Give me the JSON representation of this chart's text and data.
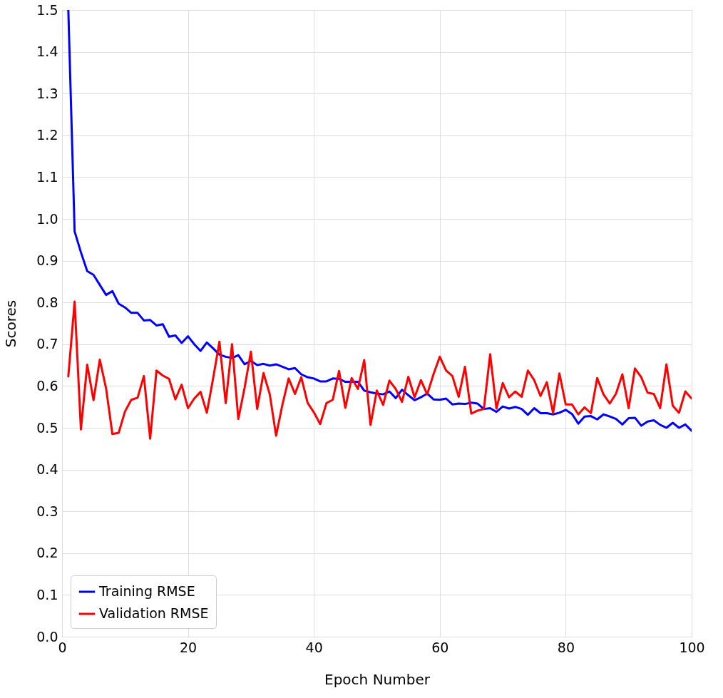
{
  "chart_data": {
    "type": "line",
    "xlabel": "Epoch Number",
    "ylabel": "Scores",
    "x": [
      1,
      2,
      3,
      4,
      5,
      6,
      7,
      8,
      9,
      10,
      11,
      12,
      13,
      14,
      15,
      16,
      17,
      18,
      19,
      20,
      21,
      22,
      23,
      24,
      25,
      26,
      27,
      28,
      29,
      30,
      31,
      32,
      33,
      34,
      35,
      36,
      37,
      38,
      39,
      40,
      41,
      42,
      43,
      44,
      45,
      46,
      47,
      48,
      49,
      50,
      51,
      52,
      53,
      54,
      55,
      56,
      57,
      58,
      59,
      60,
      61,
      62,
      63,
      64,
      65,
      66,
      67,
      68,
      69,
      70,
      71,
      72,
      73,
      74,
      75,
      76,
      77,
      78,
      79,
      80,
      81,
      82,
      83,
      84,
      85,
      86,
      87,
      88,
      89,
      90,
      91,
      92,
      93,
      94,
      95,
      96,
      97,
      98,
      99,
      100
    ],
    "series": [
      {
        "name": "Training RMSE",
        "color": "#0000ff",
        "values": [
          1.5,
          0.97,
          0.92,
          0.875,
          0.866,
          0.842,
          0.818,
          0.827,
          0.797,
          0.788,
          0.775,
          0.775,
          0.757,
          0.758,
          0.745,
          0.748,
          0.718,
          0.721,
          0.703,
          0.719,
          0.7,
          0.684,
          0.704,
          0.69,
          0.675,
          0.67,
          0.667,
          0.674,
          0.652,
          0.66,
          0.65,
          0.653,
          0.649,
          0.652,
          0.646,
          0.64,
          0.643,
          0.628,
          0.621,
          0.618,
          0.611,
          0.611,
          0.618,
          0.617,
          0.61,
          0.61,
          0.61,
          0.589,
          0.585,
          0.582,
          0.58,
          0.587,
          0.571,
          0.591,
          0.578,
          0.566,
          0.573,
          0.582,
          0.568,
          0.567,
          0.57,
          0.556,
          0.558,
          0.557,
          0.56,
          0.558,
          0.545,
          0.547,
          0.538,
          0.551,
          0.546,
          0.55,
          0.545,
          0.531,
          0.547,
          0.535,
          0.535,
          0.532,
          0.536,
          0.543,
          0.533,
          0.51,
          0.527,
          0.528,
          0.52,
          0.532,
          0.527,
          0.521,
          0.508,
          0.523,
          0.524,
          0.505,
          0.515,
          0.518,
          0.507,
          0.5,
          0.512,
          0.5,
          0.508,
          0.493
        ]
      },
      {
        "name": "Validation RMSE",
        "color": "#ff0000",
        "values": [
          0.623,
          0.802,
          0.496,
          0.651,
          0.566,
          0.663,
          0.594,
          0.485,
          0.488,
          0.539,
          0.567,
          0.572,
          0.624,
          0.474,
          0.637,
          0.625,
          0.617,
          0.568,
          0.603,
          0.547,
          0.57,
          0.586,
          0.536,
          0.618,
          0.706,
          0.559,
          0.7,
          0.521,
          0.596,
          0.682,
          0.545,
          0.631,
          0.58,
          0.481,
          0.555,
          0.618,
          0.581,
          0.621,
          0.56,
          0.537,
          0.509,
          0.559,
          0.567,
          0.636,
          0.548,
          0.619,
          0.593,
          0.662,
          0.507,
          0.589,
          0.555,
          0.613,
          0.593,
          0.562,
          0.622,
          0.573,
          0.614,
          0.58,
          0.628,
          0.67,
          0.637,
          0.624,
          0.574,
          0.646,
          0.534,
          0.541,
          0.545,
          0.676,
          0.546,
          0.607,
          0.573,
          0.587,
          0.574,
          0.637,
          0.614,
          0.576,
          0.609,
          0.535,
          0.63,
          0.556,
          0.556,
          0.532,
          0.549,
          0.535,
          0.619,
          0.58,
          0.558,
          0.582,
          0.628,
          0.547,
          0.642,
          0.621,
          0.584,
          0.581,
          0.547,
          0.652,
          0.553,
          0.536,
          0.587,
          0.57
        ]
      }
    ],
    "xlim": [
      0,
      100
    ],
    "xticks": [
      0,
      20,
      40,
      60,
      80,
      100
    ],
    "ylim": [
      0,
      1.5
    ],
    "yticks": [
      {
        "value": 0,
        "label": "0.0"
      },
      0.1,
      0.2,
      0.3,
      0.4,
      0.5,
      0.6,
      0.7,
      0.8,
      0.9,
      {
        "value": 1,
        "label": "1.0"
      },
      1.1,
      1.2,
      1.3,
      1.4,
      1.5
    ],
    "grid": true,
    "legend": "bottom left",
    "marker": "none",
    "line_style": "solid"
  }
}
